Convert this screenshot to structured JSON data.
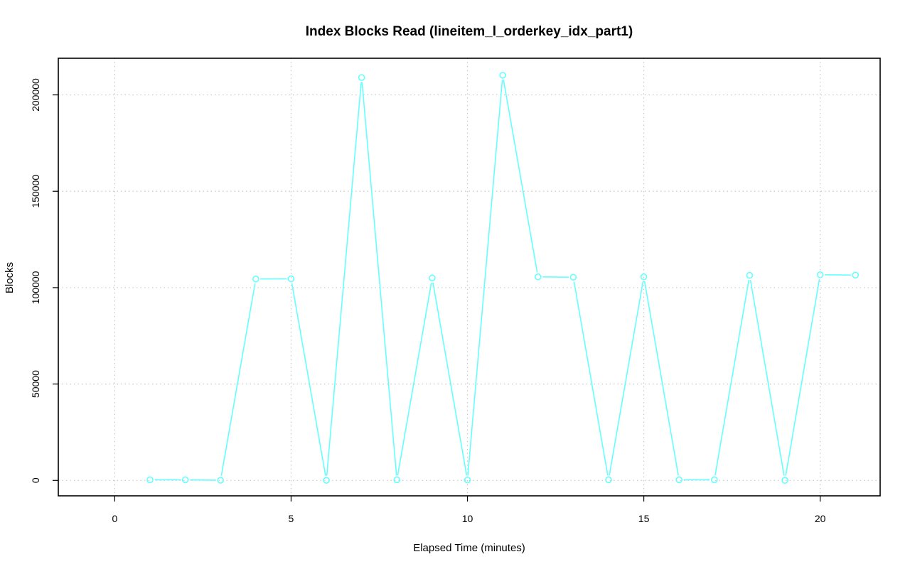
{
  "chart_data": {
    "type": "line",
    "title": "Index Blocks Read (lineitem_l_orderkey_idx_part1)",
    "xlabel": "Elapsed Time (minutes)",
    "ylabel": "Blocks",
    "xlim": [
      -1.6,
      21.7
    ],
    "ylim": [
      -8000,
      219000
    ],
    "xticks": [
      0,
      5,
      10,
      15,
      20
    ],
    "yticks": [
      0,
      50000,
      100000,
      150000,
      200000
    ],
    "grid": true,
    "series_color": "#66ffff",
    "x": [
      1,
      2,
      3,
      4,
      5,
      6,
      7,
      8,
      9,
      10,
      11,
      12,
      13,
      14,
      15,
      16,
      17,
      18,
      19,
      20,
      21
    ],
    "y": [
      300,
      300,
      100,
      104500,
      104600,
      50,
      209000,
      300,
      105000,
      200,
      210200,
      105600,
      105400,
      300,
      105600,
      300,
      300,
      106400,
      50,
      106700,
      106500
    ]
  }
}
